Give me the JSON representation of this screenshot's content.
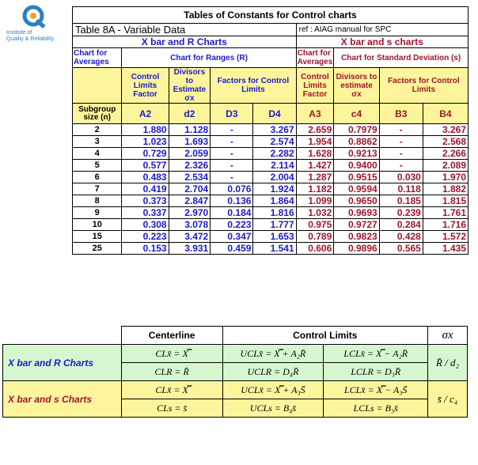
{
  "logo": {
    "line1": "Institute of",
    "line2": "Quality & Reliability"
  },
  "title": "Tables of Constants for Control charts",
  "subtitle": "Table 8A - Variable Data",
  "ref": "ref : AIAG manual for SPC",
  "xr_header": "X bar and R Charts",
  "xs_header": "X bar and s charts",
  "chart_for_averages": "Chart for Averages",
  "chart_for_ranges": "Chart for Ranges (R)",
  "chart_for_sd": "Chart for Standard Deviation (s)",
  "control_limits_factor": "Control Limits Factor",
  "divisors_estimate": "Divisors to Estimate",
  "divisors_estimate_s": "Divisors to estimate",
  "sigma": "σx",
  "factors_control_limits": "Factors for Control Limits",
  "subgroup_label": "Subgroup size (n)",
  "col_heads": [
    "A2",
    "d2",
    "D3",
    "D4",
    "A3",
    "c4",
    "B3",
    "B4"
  ],
  "rows": [
    [
      "2",
      "1.880",
      "1.128",
      "-",
      "3.267",
      "2.659",
      "0.7979",
      "-",
      "3.267"
    ],
    [
      "3",
      "1.023",
      "1.693",
      "-",
      "2.574",
      "1.954",
      "0.8862",
      "-",
      "2.568"
    ],
    [
      "4",
      "0.729",
      "2.059",
      "-",
      "2.282",
      "1.628",
      "0.9213",
      "-",
      "2.266"
    ],
    [
      "5",
      "0.577",
      "2.326",
      "-",
      "2.114",
      "1.427",
      "0.9400",
      "-",
      "2.089"
    ],
    [
      "6",
      "0.483",
      "2.534",
      "-",
      "2.004",
      "1.287",
      "0.9515",
      "0.030",
      "1.970"
    ],
    [
      "7",
      "0.419",
      "2.704",
      "0.076",
      "1.924",
      "1.182",
      "0.9594",
      "0.118",
      "1.882"
    ],
    [
      "8",
      "0.373",
      "2.847",
      "0.136",
      "1.864",
      "1.099",
      "0.9650",
      "0.185",
      "1.815"
    ],
    [
      "9",
      "0.337",
      "2.970",
      "0.184",
      "1.816",
      "1.032",
      "0.9693",
      "0.239",
      "1.761"
    ],
    [
      "10",
      "0.308",
      "3.078",
      "0.223",
      "1.777",
      "0.975",
      "0.9727",
      "0.284",
      "1.716"
    ],
    [
      "15",
      "0.223",
      "3.472",
      "0.347",
      "1.653",
      "0.789",
      "0.9823",
      "0.428",
      "1.572"
    ],
    [
      "25",
      "0.153",
      "3.931",
      "0.459",
      "1.541",
      "0.606",
      "0.9896",
      "0.565",
      "1.435"
    ]
  ],
  "formulas": {
    "centerline": "Centerline",
    "control_limits": "Control Limits",
    "sigma_head": "σx",
    "xr_label": "X bar and R Charts",
    "xs_label": "X bar and s Charts",
    "xr_cl_x": "CLx̄ = X̿",
    "xr_ucl_x": "UCLx̄ = X̿ + A₂R̄",
    "xr_lcl_x": "LCLx̄ = X̿ − A₂R̄",
    "xr_cl_r": "CLR = R̄",
    "xr_ucl_r": "UCLR = D₄R̄",
    "xr_lcl_r": "LCLR = D₃R̄",
    "xr_sigma": "R̄ / d₂",
    "xs_cl_x": "CLx̄ = X̿",
    "xs_ucl_x": "UCLx̄ = X̿ + A₃S̄",
    "xs_lcl_x": "LCLx̄ = X̿ − A₃S̄",
    "xs_cl_s": "CLs = s̄",
    "xs_ucl_s": "UCLs = B₄s̄",
    "xs_lcl_s": "LCLs = B₃s̄",
    "xs_sigma": "s̄ / c₄"
  },
  "colors": {
    "yellow": "#fdf59c",
    "green": "#d5f7cf",
    "blue": "#1a1acc",
    "red": "#a0152a"
  }
}
